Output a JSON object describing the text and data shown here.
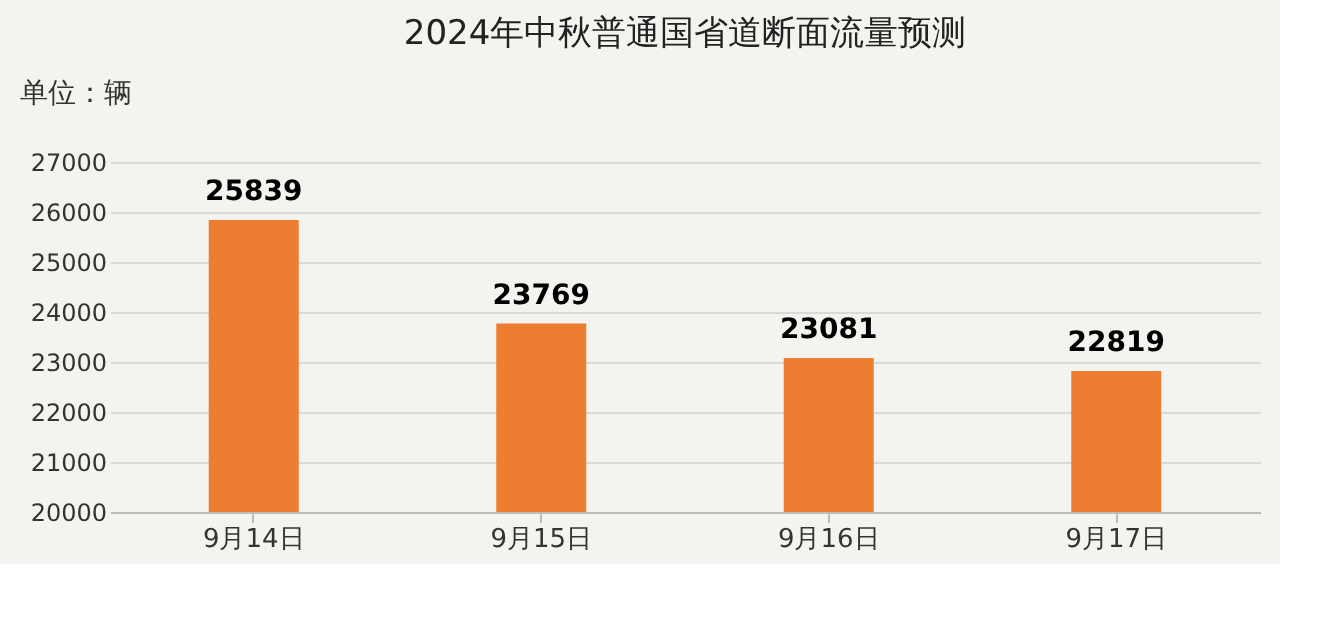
{
  "chart_data": {
    "type": "bar",
    "title": "2024年中秋普通国省道断面流量预测",
    "annotations": [
      "单位：辆"
    ],
    "categories": [
      "9月14日",
      "9月15日",
      "9月16日",
      "9月17日"
    ],
    "values": [
      25839,
      23769,
      23081,
      22819
    ],
    "color": "#ed7d31",
    "ylim": [
      20000,
      27000
    ],
    "yticks": [
      20000,
      21000,
      22000,
      23000,
      24000,
      25000,
      26000,
      27000
    ],
    "grid": "y",
    "data_labels": true
  }
}
